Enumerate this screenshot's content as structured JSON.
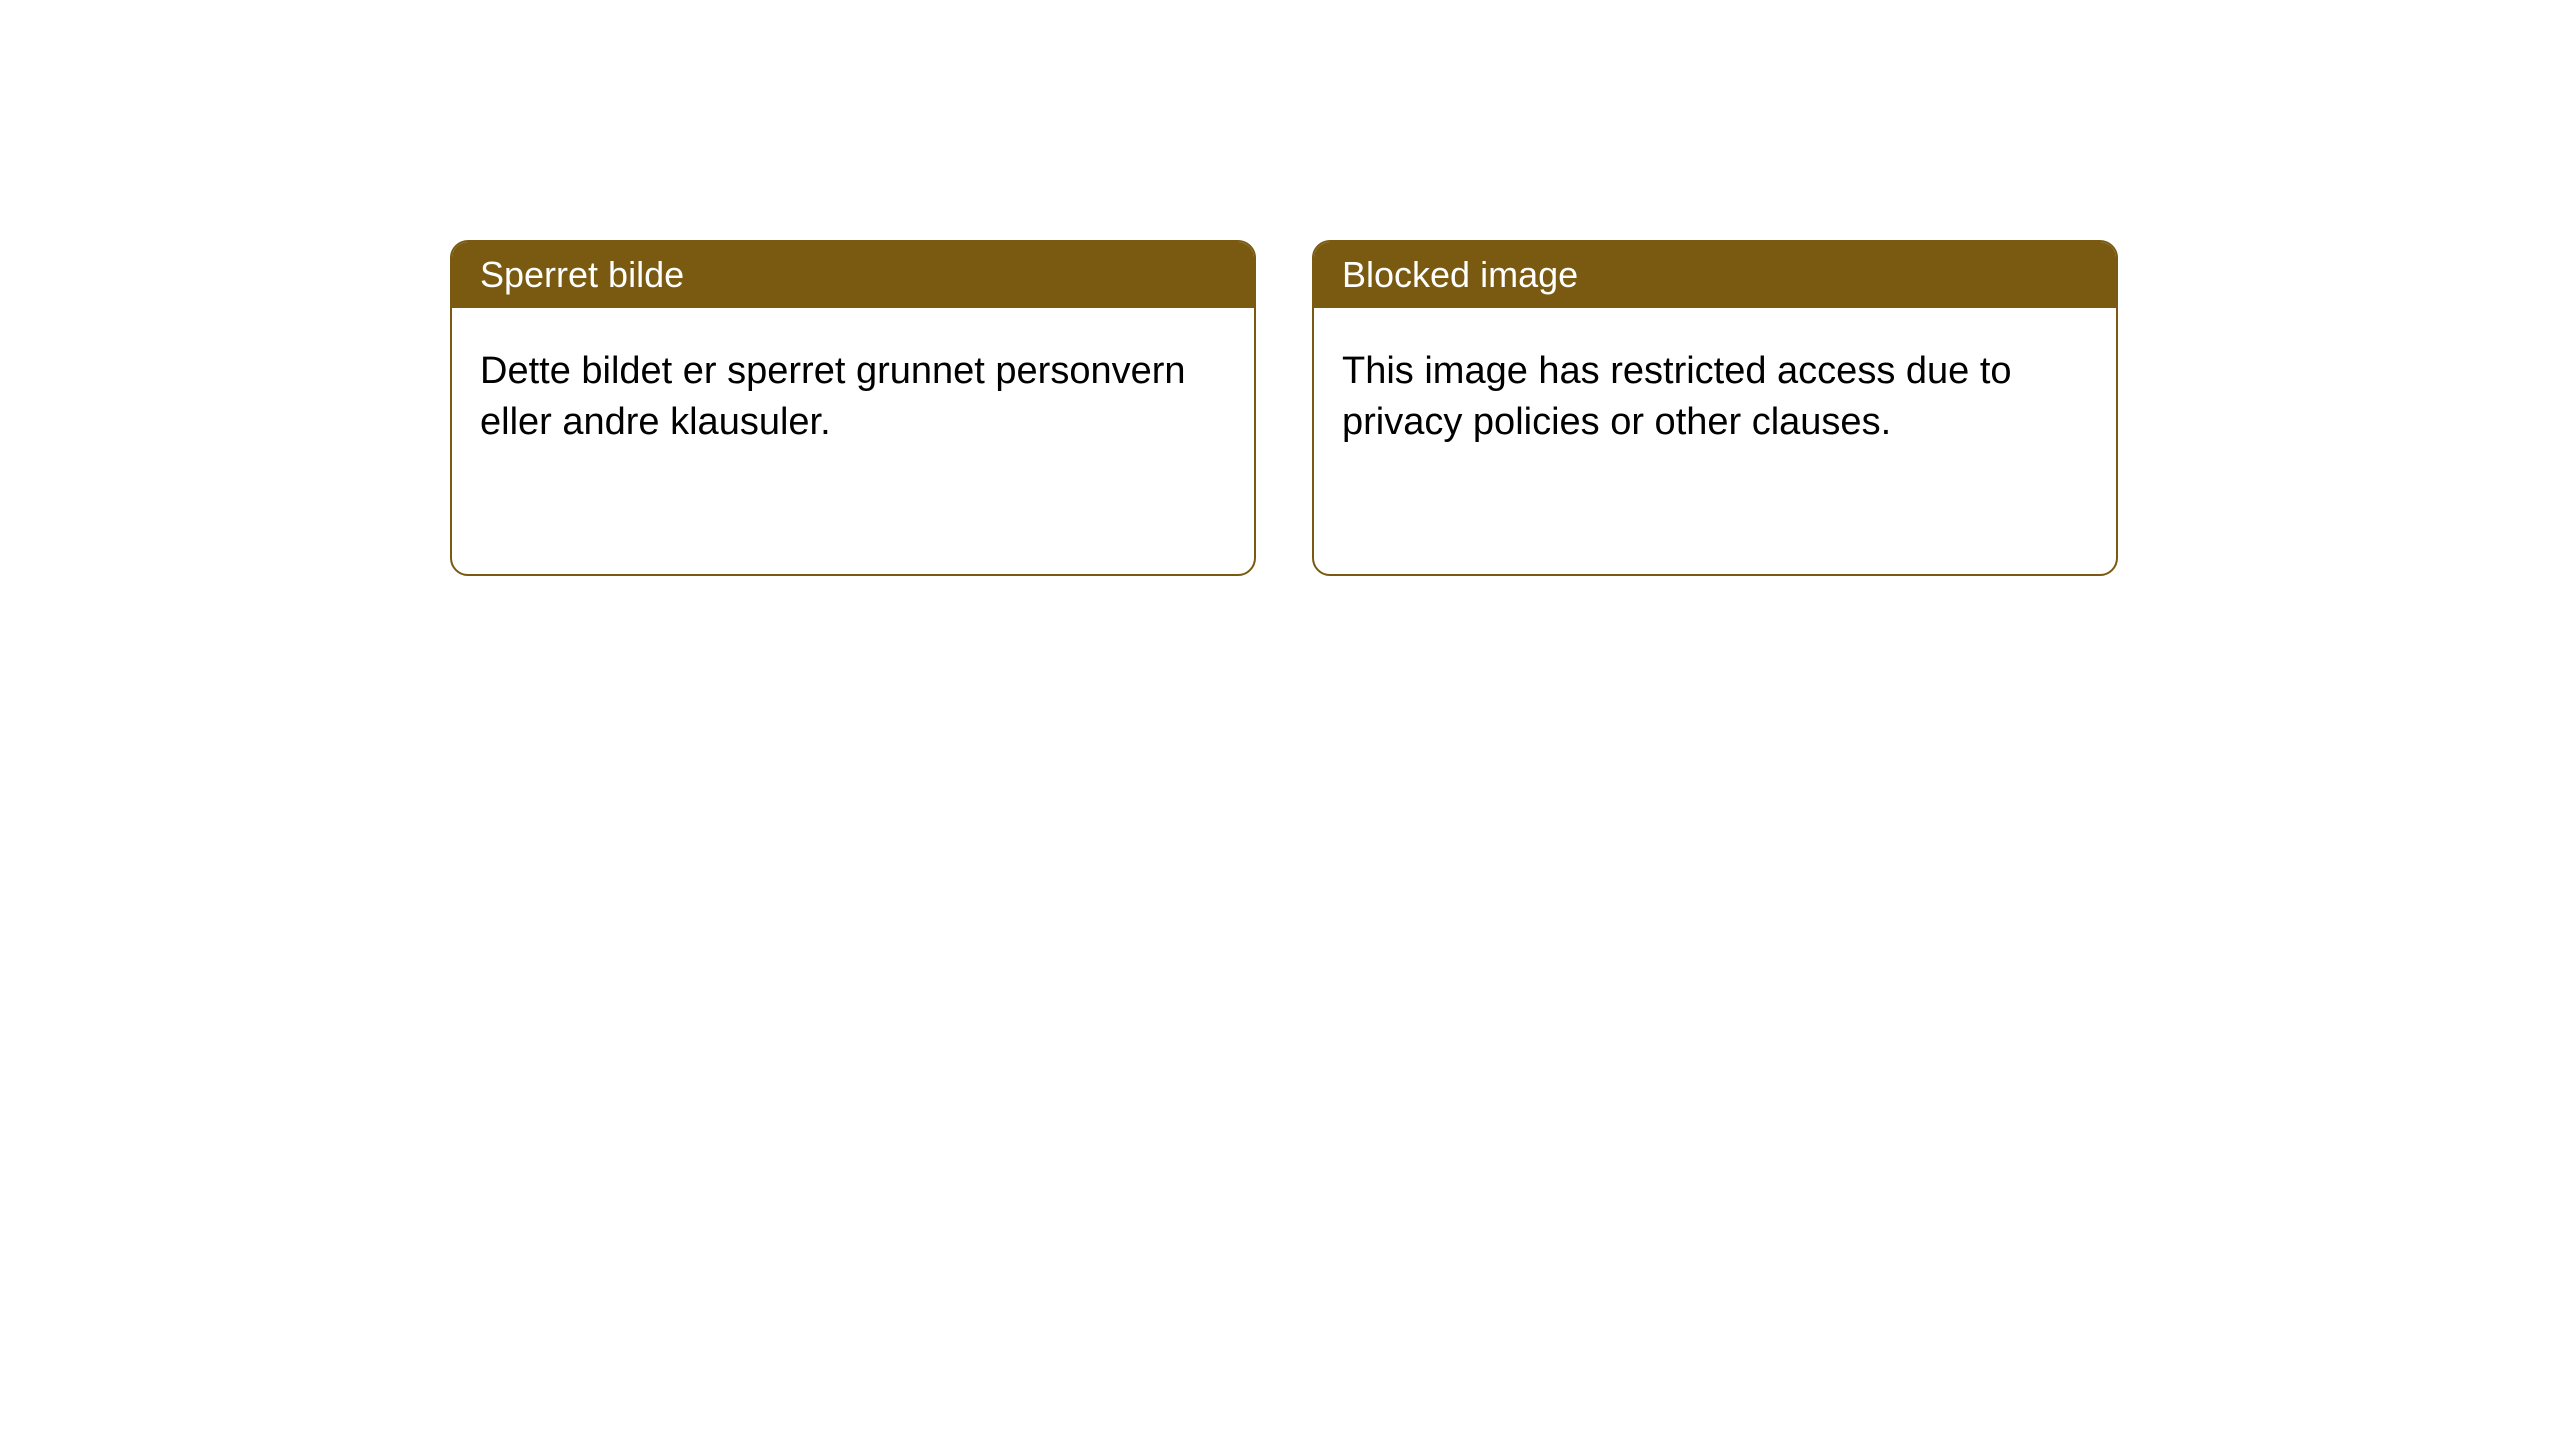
{
  "notices": [
    {
      "title": "Sperret bilde",
      "body": "Dette bildet er sperret grunnet personvern eller andre klausuler."
    },
    {
      "title": "Blocked image",
      "body": "This image has restricted access due to privacy policies or other clauses."
    }
  ],
  "style": {
    "header_bg": "#7a5a10",
    "header_text": "#ffffff",
    "border_color": "#7a5a10",
    "body_text": "#000000",
    "background": "#ffffff",
    "border_radius": 18,
    "header_fontsize": 36,
    "body_fontsize": 38
  }
}
